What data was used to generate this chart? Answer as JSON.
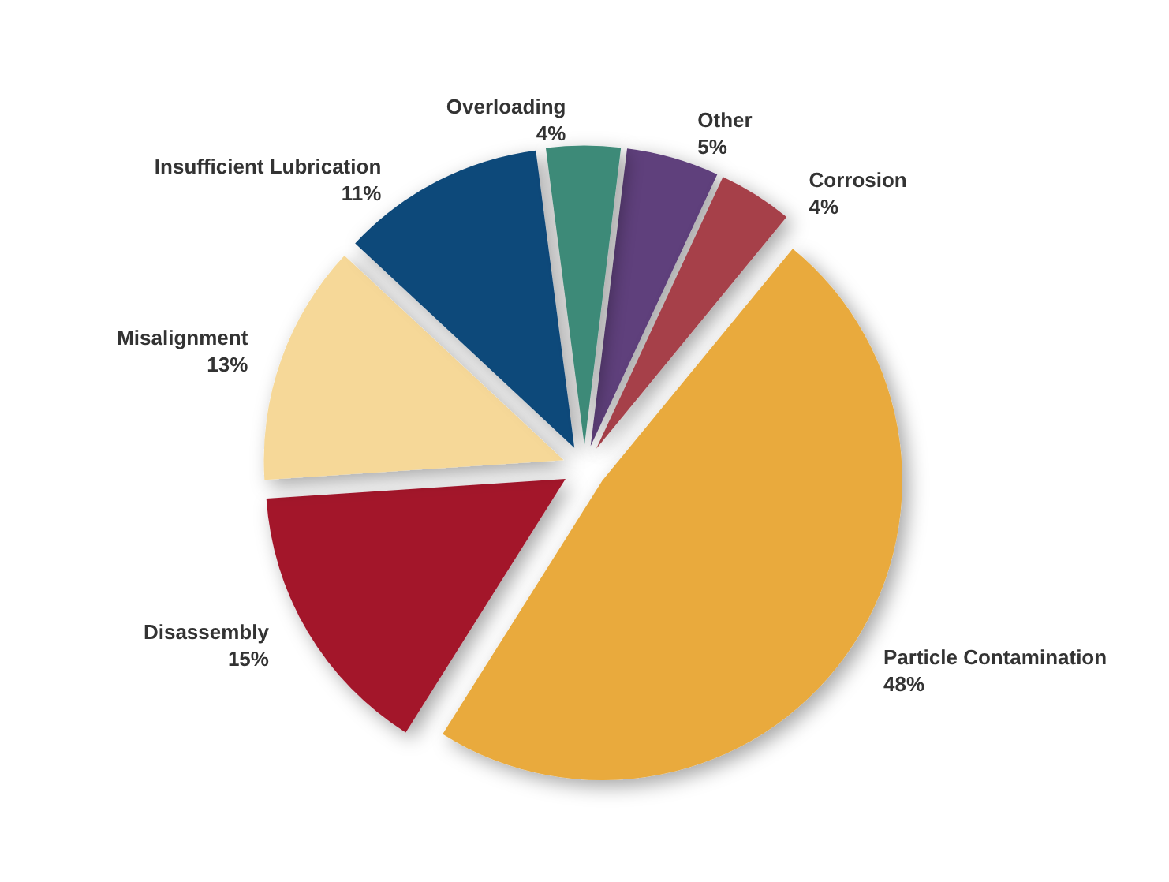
{
  "chart_data": {
    "type": "pie",
    "categories": [
      "Other",
      "Corrosion",
      "Particle Contamination",
      "Disassembly",
      "Misalignment",
      "Insufficient Lubrication",
      "Overloading"
    ],
    "values": [
      5,
      4,
      48,
      15,
      13,
      11,
      4
    ],
    "value_labels": [
      "5%",
      "4%",
      "48%",
      "15%",
      "13%",
      "11%",
      "4%"
    ],
    "colors": [
      "#5e3f7c",
      "#a6404a",
      "#e9aa3c",
      "#a3162c",
      "#f6d898",
      "#10497a",
      "#3e8a78"
    ],
    "legend": false
  }
}
